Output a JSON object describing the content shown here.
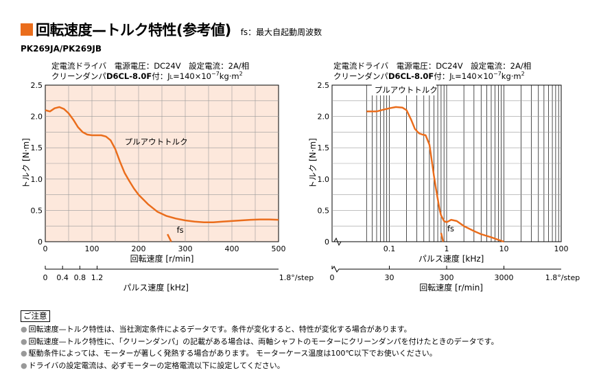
{
  "header": {
    "title": "回転速度—トルク特性(参考値)",
    "fs_note": "fs：最大自起動周波数",
    "model": "PK269JA/PK269JB",
    "accent_color": "#ea6d1c"
  },
  "condition": {
    "line1": "定電流ドライバ　電源電圧：DC24V　設定電流：2A/相",
    "line2_prefix": "クリーンダンパ",
    "damper_model": "D6CL-8.0F",
    "line2_suffix_a": "付：J",
    "line2_sub": "L",
    "line2_suffix_b": "=140×10",
    "line2_sup": "−7",
    "line2_suffix_c": "kg·m",
    "line2_sup2": "2"
  },
  "chart_data": [
    {
      "type": "line",
      "ylabel": "トルク [N·m]",
      "xlabel": "回転速度 [r/min]",
      "xlim": [
        0,
        500
      ],
      "ylim": [
        0,
        2.5
      ],
      "xticks": [
        "0",
        "100",
        "200",
        "300",
        "400",
        "500"
      ],
      "yticks": [
        "0",
        "0.5",
        "1.0",
        "1.5",
        "2.0",
        "2.5"
      ],
      "grid": true,
      "secondary_axis": {
        "label": "パルス速度 [kHz]",
        "ticks": [
          "0",
          "0.4",
          "0.8",
          "1.2",
          "1.8°/step"
        ],
        "values": [
          0,
          0.4,
          0.8,
          1.2
        ]
      },
      "series": [
        {
          "name": "プルアウトトルク",
          "x": [
            0,
            10,
            20,
            30,
            40,
            50,
            60,
            70,
            80,
            90,
            100,
            110,
            120,
            130,
            140,
            150,
            160,
            170,
            180,
            190,
            200,
            220,
            240,
            260,
            280,
            300,
            320,
            340,
            360,
            380,
            400,
            420,
            440,
            460,
            480,
            500
          ],
          "y": [
            2.1,
            2.08,
            2.13,
            2.15,
            2.12,
            2.05,
            1.95,
            1.83,
            1.75,
            1.71,
            1.7,
            1.7,
            1.7,
            1.68,
            1.62,
            1.48,
            1.28,
            1.1,
            0.97,
            0.85,
            0.75,
            0.6,
            0.48,
            0.41,
            0.37,
            0.34,
            0.32,
            0.31,
            0.31,
            0.32,
            0.33,
            0.34,
            0.35,
            0.355,
            0.355,
            0.35
          ]
        },
        {
          "name": "fs",
          "x": [
            262,
            270
          ],
          "y": [
            0.12,
            0.0
          ]
        }
      ]
    },
    {
      "type": "line",
      "ylabel": "トルク [N·m]",
      "xlabel": "パルス速度 [kHz]",
      "xscale": "log",
      "xlim": [
        0.01,
        100
      ],
      "ylim": [
        0,
        2.5
      ],
      "xticks": [
        "0.1",
        "1",
        "10",
        "100"
      ],
      "yticks": [
        "0",
        "0.5",
        "1.0",
        "1.5",
        "2.0",
        "2.5"
      ],
      "grid": true,
      "secondary_axis": {
        "label": "回転速度 [r/min]",
        "ticks": [
          "0",
          "30",
          "300",
          "3000",
          "1.8°/step"
        ]
      },
      "series": [
        {
          "name": "プルアウトトルク",
          "x": [
            0.04,
            0.06,
            0.08,
            0.1,
            0.13,
            0.17,
            0.2,
            0.24,
            0.28,
            0.33,
            0.38,
            0.43,
            0.5,
            0.55,
            0.6,
            0.65,
            0.7,
            0.75,
            0.8,
            0.9,
            1.0,
            1.2,
            1.5,
            2.0,
            3.0,
            4.0,
            6.0,
            8.0,
            10.0
          ],
          "y": [
            2.08,
            2.08,
            2.11,
            2.13,
            2.15,
            2.14,
            2.1,
            1.95,
            1.8,
            1.73,
            1.71,
            1.7,
            1.55,
            1.3,
            1.05,
            0.85,
            0.68,
            0.52,
            0.42,
            0.33,
            0.31,
            0.35,
            0.33,
            0.25,
            0.17,
            0.12,
            0.07,
            0.03,
            0.0
          ]
        },
        {
          "name": "fs",
          "x": [
            0.8,
            0.87
          ],
          "y": [
            0.14,
            0.0
          ]
        }
      ]
    }
  ],
  "notes": {
    "heading": "ご注意",
    "items": [
      "回転速度—トルク特性は、当社測定条件によるデータです。条件が変化すると、特性が変化する場合があります。",
      "回転速度—トルク特性に、「クリーンダンパ」の記載がある場合は、両軸シャフトのモーターにクリーンダンパを付けたときのデータです。",
      "駆動条件によっては、モーターが著しく発熱する場合があります。 モーターケース温度は100℃以下でお使いください。",
      "ドライバの設定電流は、必ずモーターの定格電流以下に設定してください。"
    ]
  }
}
